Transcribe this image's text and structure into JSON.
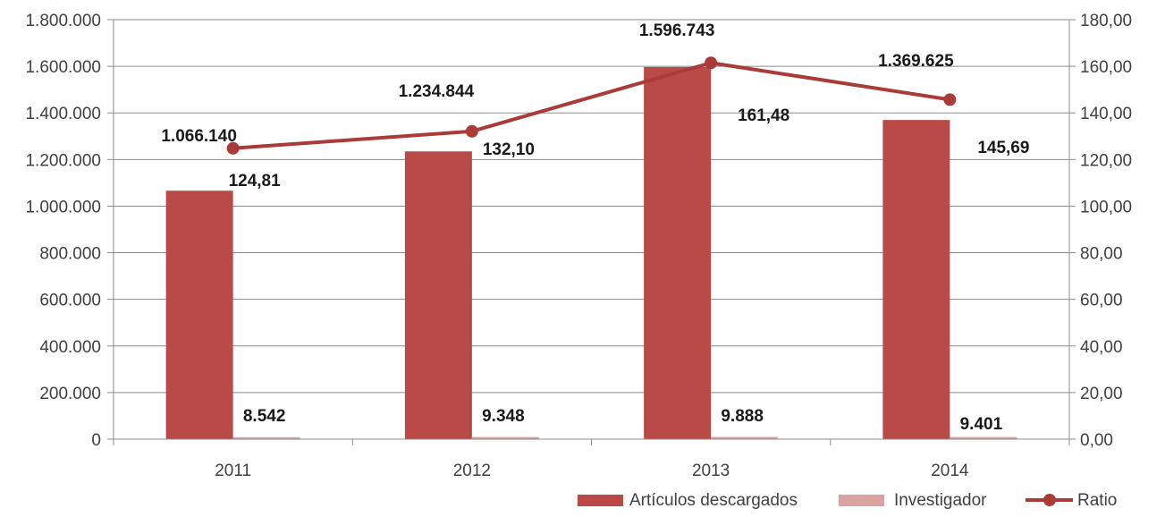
{
  "chart_data": {
    "type": "bar",
    "categories": [
      "2011",
      "2012",
      "2013",
      "2014"
    ],
    "series": [
      {
        "name": "Artículos descargados",
        "type": "bar",
        "axis": "left",
        "color": "#b94a48",
        "values": [
          1066140,
          1234844,
          1596743,
          1369625
        ],
        "labels": [
          "1.066.140",
          "1.234.844",
          "1.596.743",
          "1.369.625"
        ]
      },
      {
        "name": "Investigador",
        "type": "bar",
        "axis": "left",
        "color": "#d9a3a2",
        "values": [
          8542,
          9348,
          9888,
          9401
        ],
        "labels": [
          "8.542",
          "9.348",
          "9.888",
          "9.401"
        ]
      },
      {
        "name": "Ratio",
        "type": "line",
        "axis": "right",
        "color": "#a93b38",
        "values": [
          124.81,
          132.1,
          161.48,
          145.69
        ],
        "labels": [
          "124,81",
          "132,10",
          "161,48",
          "145,69"
        ]
      }
    ],
    "y_left": {
      "range": [
        0,
        1800000
      ],
      "ticks": [
        0,
        200000,
        400000,
        600000,
        800000,
        1000000,
        1200000,
        1400000,
        1600000,
        1800000
      ],
      "tick_labels": [
        "0",
        "200.000",
        "400.000",
        "600.000",
        "800.000",
        "1.000.000",
        "1.200.000",
        "1.400.000",
        "1.600.000",
        "1.800.000"
      ]
    },
    "y_right": {
      "range": [
        0,
        180
      ],
      "ticks": [
        0,
        20,
        40,
        60,
        80,
        100,
        120,
        140,
        160,
        180
      ],
      "tick_labels": [
        "0,00",
        "20,00",
        "40,00",
        "60,00",
        "80,00",
        "100,00",
        "120,00",
        "140,00",
        "160,00",
        "180,00"
      ]
    },
    "grid": "horizontal",
    "legend_position": "bottom-right"
  }
}
